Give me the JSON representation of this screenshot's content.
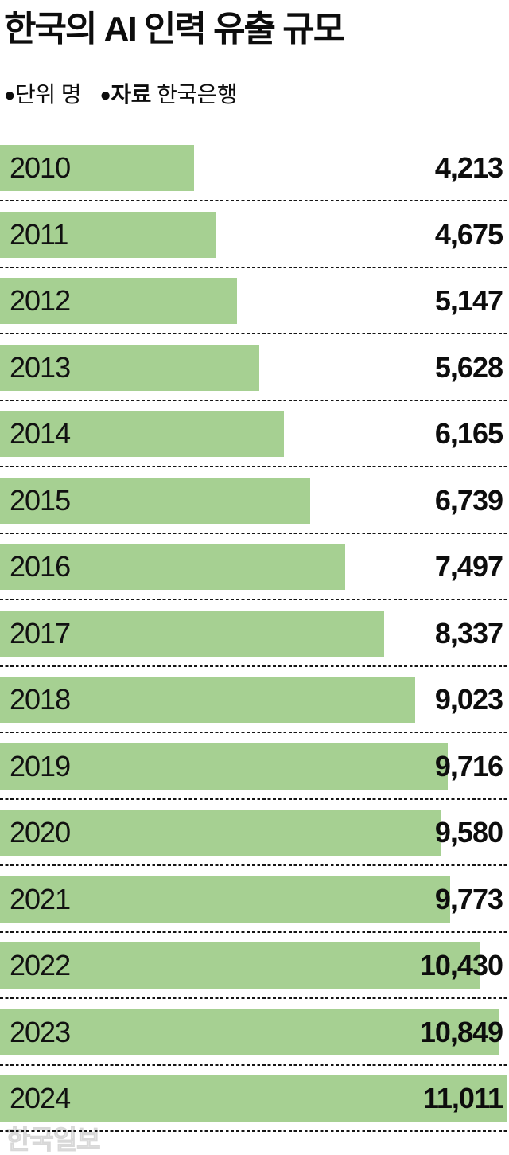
{
  "title": "한국의 AI 인력 유출 규모",
  "legend": {
    "unit_bullet": "●",
    "unit_text": "단위 명",
    "source_bullet": "●",
    "source_label": "자료",
    "source_value": "한국은행"
  },
  "watermark": "한국일보",
  "colors": {
    "bar": "#a6d092",
    "text": "#0d0d0d",
    "separator": "#151515",
    "watermark": "#ebebeb",
    "background": "#ffffff"
  },
  "chart_data": {
    "type": "bar",
    "orientation": "horizontal",
    "title": "한국의 AI 인력 유출 규모",
    "unit": "명",
    "source": "한국은행",
    "categories": [
      "2010",
      "2011",
      "2012",
      "2013",
      "2014",
      "2015",
      "2016",
      "2017",
      "2018",
      "2019",
      "2020",
      "2021",
      "2022",
      "2023",
      "2024"
    ],
    "values": [
      4213,
      4675,
      5147,
      5628,
      6165,
      6739,
      7497,
      8337,
      9023,
      9716,
      9580,
      9773,
      10430,
      10849,
      11011
    ],
    "value_labels": [
      "4,213",
      "4,675",
      "5,147",
      "5,628",
      "6,165",
      "6,739",
      "7,497",
      "8,337",
      "9,023",
      "9,716",
      "9,580",
      "9,773",
      "10,430",
      "10,849",
      "11,011"
    ],
    "xlim": [
      0,
      11055
    ],
    "grid": "dashed-row-separators",
    "legend_position": "none",
    "value_label_position": "right-aligned",
    "bar_color": "#a6d092"
  }
}
